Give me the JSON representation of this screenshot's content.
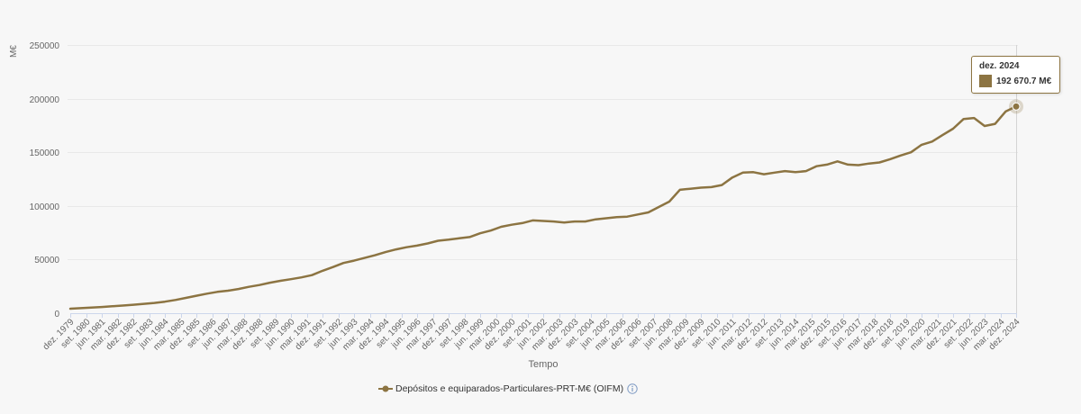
{
  "chart_data": {
    "type": "line",
    "xlabel": "Tempo",
    "ylabel": "M€",
    "x_range": [
      "1979-12",
      "2024-12"
    ],
    "ylim": [
      0,
      250000
    ],
    "y_ticks": [
      0,
      50000,
      100000,
      150000,
      200000,
      250000
    ],
    "x_tick_labels": [
      "dez. 1979",
      "set. 1980",
      "jun. 1981",
      "mar. 1982",
      "dez. 1982",
      "set. 1983",
      "jun. 1984",
      "mar. 1985",
      "dez. 1985",
      "set. 1986",
      "jun. 1987",
      "mar. 1988",
      "dez. 1988",
      "set. 1989",
      "jun. 1990",
      "mar. 1991",
      "dez. 1991",
      "set. 1992",
      "jun. 1993",
      "mar. 1994",
      "dez. 1994",
      "set. 1995",
      "jun. 1996",
      "mar. 1997",
      "dez. 1997",
      "set. 1998",
      "jun. 1999",
      "mar. 2000",
      "dez. 2000",
      "set. 2001",
      "jun. 2002",
      "mar. 2003",
      "dez. 2003",
      "set. 2004",
      "jun. 2005",
      "mar. 2006",
      "dez. 2006",
      "set. 2007",
      "jun. 2008",
      "mar. 2009",
      "dez. 2009",
      "set. 2010",
      "jun. 2011",
      "mar. 2012",
      "dez. 2012",
      "set. 2013",
      "jun. 2014",
      "mar. 2015",
      "dez. 2015",
      "set. 2016",
      "jun. 2017",
      "mar. 2018",
      "dez. 2018",
      "set. 2019",
      "jun. 2020",
      "mar. 2021",
      "dez. 2021",
      "set. 2022",
      "jun. 2023",
      "mar. 2024",
      "dez. 2024"
    ],
    "grid": true,
    "legend_position": "bottom",
    "series": [
      {
        "name": "Depósitos e equiparados-Particulares-PRT-M€ (OIFM)",
        "color": "#8c7442",
        "x": [
          "1979-12",
          "1980-06",
          "1980-12",
          "1981-06",
          "1981-12",
          "1982-06",
          "1982-12",
          "1983-06",
          "1983-12",
          "1984-06",
          "1984-12",
          "1985-06",
          "1985-12",
          "1986-06",
          "1986-12",
          "1987-06",
          "1987-12",
          "1988-06",
          "1988-12",
          "1989-06",
          "1989-12",
          "1990-06",
          "1990-12",
          "1991-06",
          "1991-12",
          "1992-06",
          "1992-12",
          "1993-06",
          "1993-12",
          "1994-06",
          "1994-12",
          "1995-06",
          "1995-12",
          "1996-06",
          "1996-12",
          "1997-06",
          "1997-12",
          "1998-06",
          "1998-12",
          "1999-06",
          "1999-12",
          "2000-06",
          "2000-12",
          "2001-06",
          "2001-12",
          "2002-06",
          "2002-12",
          "2003-06",
          "2003-12",
          "2004-06",
          "2004-12",
          "2005-06",
          "2005-12",
          "2006-06",
          "2006-12",
          "2007-06",
          "2007-12",
          "2008-06",
          "2008-12",
          "2009-06",
          "2009-12",
          "2010-06",
          "2010-12",
          "2011-06",
          "2011-12",
          "2012-06",
          "2012-12",
          "2013-06",
          "2013-12",
          "2014-06",
          "2014-12",
          "2015-06",
          "2015-12",
          "2016-06",
          "2016-12",
          "2017-06",
          "2017-12",
          "2018-06",
          "2018-12",
          "2019-06",
          "2019-12",
          "2020-06",
          "2020-12",
          "2021-06",
          "2021-12",
          "2022-06",
          "2022-12",
          "2023-06",
          "2023-12",
          "2024-06",
          "2024-12"
        ],
        "y": [
          4200,
          4700,
          5200,
          5800,
          6500,
          7100,
          7900,
          8700,
          9600,
          10700,
          12300,
          14300,
          16300,
          18200,
          19900,
          21000,
          22600,
          24600,
          26300,
          28400,
          30200,
          31700,
          33400,
          35500,
          39500,
          43000,
          46800,
          49000,
          51500,
          54000,
          57000,
          59500,
          61500,
          63000,
          65000,
          67500,
          68500,
          69800,
          71000,
          74500,
          77000,
          80500,
          82500,
          84000,
          86500,
          86000,
          85500,
          84500,
          85500,
          85500,
          87500,
          88500,
          89500,
          90000,
          92000,
          94000,
          99000,
          104000,
          115000,
          116000,
          117000,
          117500,
          119500,
          126500,
          131000,
          131500,
          129500,
          131000,
          132500,
          131500,
          132500,
          137000,
          138500,
          141500,
          138500,
          138000,
          139500,
          140500,
          143500,
          147000,
          150000,
          157000,
          160000,
          166000,
          172000,
          181000,
          182000,
          174500,
          176500,
          188000,
          192670.7
        ]
      }
    ]
  },
  "tooltip": {
    "title": "dez. 2024",
    "value": "192 670.7 M€"
  },
  "legend": {
    "info_icon": "info-icon"
  }
}
